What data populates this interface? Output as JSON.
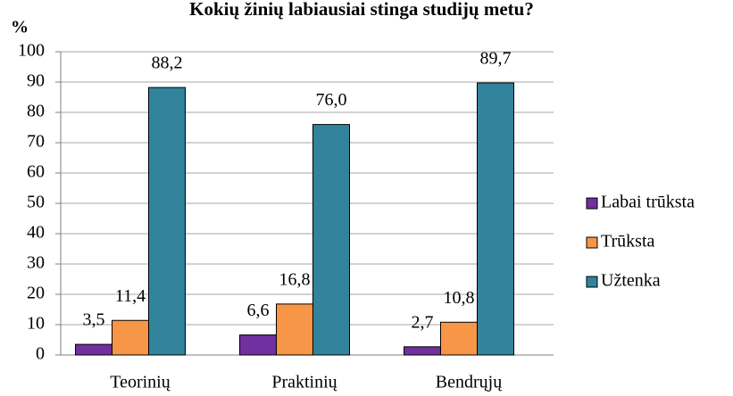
{
  "chart_data": {
    "type": "bar",
    "title": "Kokių žinių labiausiai stinga studijų metu?",
    "y_label": "%",
    "categories": [
      "Teorinių",
      "Praktinių",
      "Bendrųjų"
    ],
    "series": [
      {
        "name": "Labai trūksta",
        "color": "#7030a0",
        "values": [
          3.5,
          6.6,
          2.7
        ],
        "value_labels": [
          "3,5",
          "6,6",
          "2,7"
        ]
      },
      {
        "name": "Trūksta",
        "color": "#f79646",
        "values": [
          11.4,
          16.8,
          10.8
        ],
        "value_labels": [
          "11,4",
          "16,8",
          "10,8"
        ]
      },
      {
        "name": "Užtenka",
        "color": "#31849b",
        "values": [
          88.2,
          76.0,
          89.7
        ],
        "value_labels": [
          "88,2",
          "76,0",
          "89,7"
        ]
      }
    ],
    "ylim": [
      0,
      100
    ],
    "yticks": [
      0,
      10,
      20,
      30,
      40,
      50,
      60,
      70,
      80,
      90,
      100
    ],
    "grid": true,
    "legend": "right"
  }
}
